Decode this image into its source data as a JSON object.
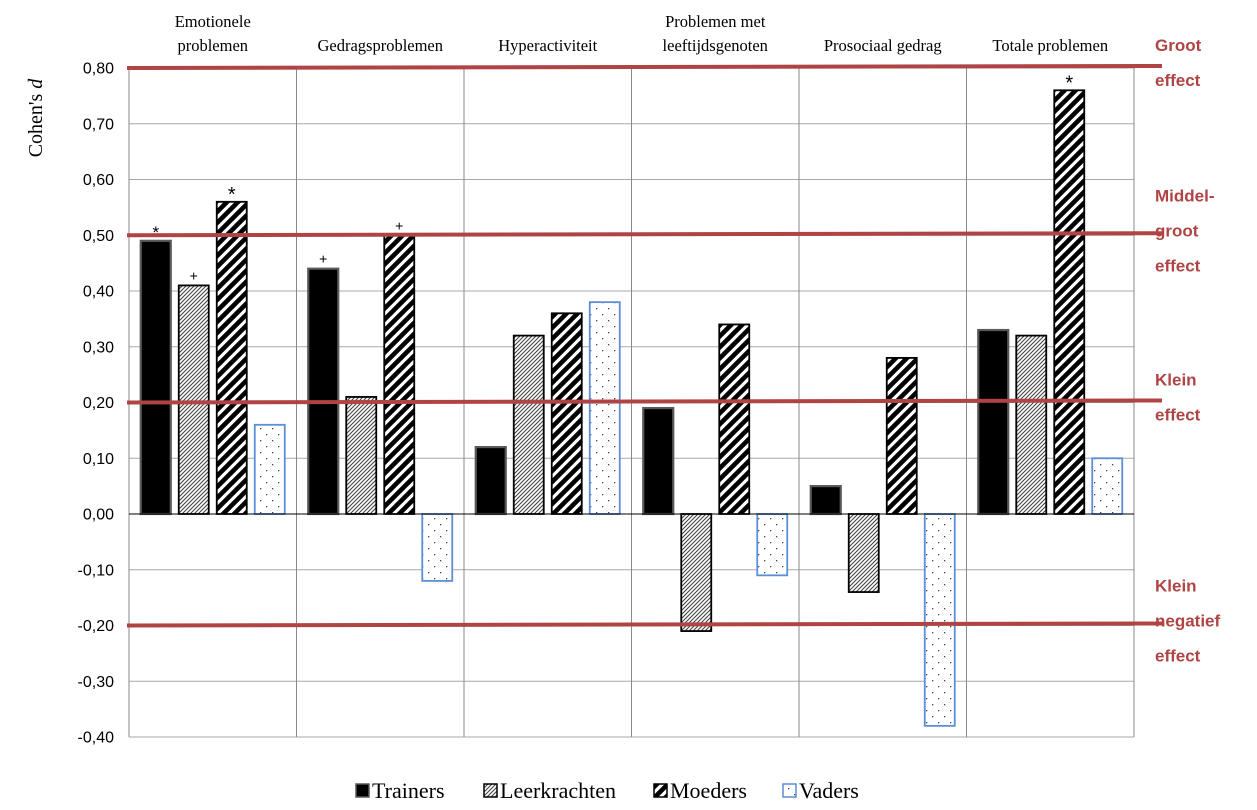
{
  "chart_data": {
    "type": "bar",
    "ylabel": "Cohen's d",
    "ylim": [
      -0.4,
      0.8
    ],
    "yticks": [
      "0,80",
      "0,70",
      "0,60",
      "0,50",
      "0,40",
      "0,30",
      "0,20",
      "0,10",
      "0,00",
      "-0,10",
      "-0,20",
      "-0,30",
      "-0,40"
    ],
    "category_lines": [
      [
        "Emotionele",
        "problemen"
      ],
      [
        "Gedragsproblemen"
      ],
      [
        "Hyperactiviteit"
      ],
      [
        "Problemen met",
        "leeftijdsgenoten"
      ],
      [
        "Prosociaal gedrag"
      ],
      [
        "Totale problemen"
      ]
    ],
    "series": [
      {
        "name": "Trainers",
        "values": [
          0.49,
          0.44,
          0.12,
          0.19,
          0.05,
          0.33
        ],
        "markers": [
          "*",
          "+",
          "",
          "",
          "",
          ""
        ]
      },
      {
        "name": "Leerkrachten",
        "values": [
          0.41,
          0.21,
          0.32,
          -0.21,
          -0.14,
          0.32
        ],
        "markers": [
          "+",
          "",
          "",
          "",
          "",
          ""
        ]
      },
      {
        "name": "Moeders",
        "values": [
          0.56,
          0.5,
          0.36,
          0.34,
          0.28,
          0.76
        ],
        "markers": [
          "*",
          "+",
          "",
          "",
          "",
          "*"
        ]
      },
      {
        "name": "Vaders",
        "values": [
          0.16,
          -0.12,
          0.38,
          -0.11,
          -0.38,
          0.1
        ],
        "markers": [
          "",
          "",
          "",
          "",
          "",
          ""
        ]
      }
    ],
    "reference_lines": [
      {
        "value": 0.8,
        "label_lines": [
          "Groot",
          "effect"
        ]
      },
      {
        "value": 0.5,
        "label_lines": [
          "Middel-",
          "groot",
          "effect"
        ]
      },
      {
        "value": 0.2,
        "label_lines": [
          "Klein",
          "effect"
        ]
      },
      {
        "value": -0.2,
        "label_lines": [
          "Klein",
          "negatief",
          "effect"
        ]
      }
    ],
    "colors": {
      "reference": "#b04444",
      "vaders_border": "#5b8fd6",
      "grid": "#999999"
    },
    "grid": true,
    "legend_position": "bottom"
  }
}
